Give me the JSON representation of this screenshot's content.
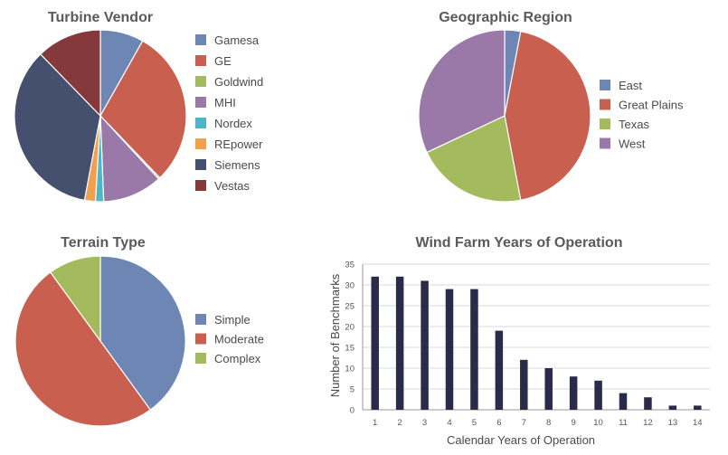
{
  "chart_data": [
    {
      "type": "pie",
      "title": "Turbine Vendor",
      "legend_position": "right",
      "slices": [
        {
          "label": "Gamesa",
          "value": 8,
          "color": "#6d86b3"
        },
        {
          "label": "GE",
          "value": 29,
          "color": "#c9604f"
        },
        {
          "label": "Goldwind",
          "value": 0.3,
          "color": "#a3bb5d"
        },
        {
          "label": "MHI",
          "value": 11,
          "color": "#9a78a8"
        },
        {
          "label": "Nordex",
          "value": 1.5,
          "color": "#4fb5c9"
        },
        {
          "label": "REpower",
          "value": 2,
          "color": "#f2a04e"
        },
        {
          "label": "Siemens",
          "value": 34,
          "color": "#44506e"
        },
        {
          "label": "Vestas",
          "value": 12,
          "color": "#85393a"
        }
      ]
    },
    {
      "type": "pie",
      "title": "Geographic Region",
      "legend_position": "right",
      "slices": [
        {
          "label": "East",
          "value": 3,
          "color": "#6d86b3"
        },
        {
          "label": "Great Plains",
          "value": 44,
          "color": "#c9604f"
        },
        {
          "label": "Texas",
          "value": 21,
          "color": "#a3bb5d"
        },
        {
          "label": "West",
          "value": 32,
          "color": "#9a78a8"
        }
      ]
    },
    {
      "type": "pie",
      "title": "Terrain Type",
      "legend_position": "right",
      "slices": [
        {
          "label": "Simple",
          "value": 40,
          "color": "#6d86b3"
        },
        {
          "label": "Moderate",
          "value": 50,
          "color": "#c9604f"
        },
        {
          "label": "Complex",
          "value": 10,
          "color": "#a3bb5d"
        }
      ]
    },
    {
      "type": "bar",
      "title": "Wind Farm Years of Operation",
      "xlabel": "Calendar Years of Operation",
      "ylabel": "Number of Benchmarks",
      "ylim": [
        0,
        35
      ],
      "yticks": [
        0,
        5,
        10,
        15,
        20,
        25,
        30,
        35
      ],
      "grid": true,
      "bar_color": "#2a2a4a",
      "categories": [
        "1",
        "2",
        "3",
        "4",
        "5",
        "6",
        "7",
        "8",
        "9",
        "10",
        "11",
        "12",
        "13",
        "14"
      ],
      "values": [
        32,
        32,
        31,
        29,
        29,
        19,
        12,
        10,
        8,
        7,
        4,
        3,
        1,
        1
      ]
    }
  ]
}
